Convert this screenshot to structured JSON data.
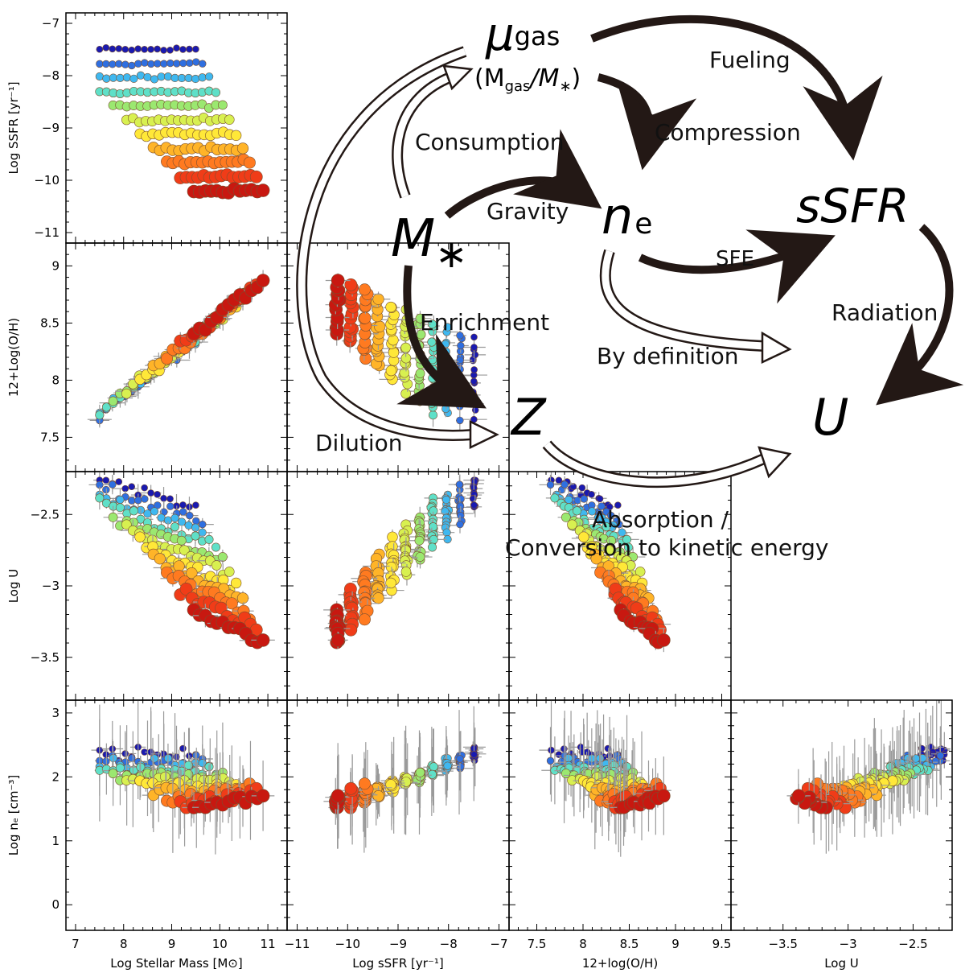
{
  "chart_data": {
    "type": "scatter",
    "panels": [
      {
        "id": "mass-ssfr",
        "xlabel": "",
        "ylabel": "Log SSFR [yr⁻¹]",
        "xlim": [
          6.8,
          11.4
        ],
        "ylim": [
          -11.2,
          -6.8
        ],
        "xticks": [],
        "yticks": [
          -11,
          -10,
          -9,
          -8,
          -7
        ]
      },
      {
        "id": "mass-oh",
        "xlabel": "",
        "ylabel": "12+Log(O/H)",
        "xlim": [
          6.8,
          11.4
        ],
        "ylim": [
          7.2,
          9.2
        ],
        "xticks": [],
        "yticks": [
          7.5,
          8.0,
          8.5,
          9.0
        ]
      },
      {
        "id": "ssfr-oh",
        "xlabel": "",
        "ylabel": "",
        "xlim": [
          -11.2,
          -6.8
        ],
        "ylim": [
          7.2,
          9.2
        ],
        "xticks": [],
        "yticks": []
      },
      {
        "id": "mass-u",
        "xlabel": "",
        "ylabel": "Log U",
        "xlim": [
          6.8,
          11.4
        ],
        "ylim": [
          -3.8,
          -2.2
        ],
        "xticks": [],
        "yticks": [
          -3.5,
          -3.0,
          -2.5
        ]
      },
      {
        "id": "ssfr-u",
        "xlabel": "",
        "ylabel": "",
        "xlim": [
          -11.2,
          -6.8
        ],
        "ylim": [
          -3.8,
          -2.2
        ],
        "xticks": [],
        "yticks": []
      },
      {
        "id": "oh-u",
        "xlabel": "",
        "ylabel": "",
        "xlim": [
          7.2,
          9.6
        ],
        "ylim": [
          -3.8,
          -2.2
        ],
        "xticks": [],
        "yticks": []
      },
      {
        "id": "mass-ne",
        "xlabel": "Log Stellar Mass [M⊙]",
        "ylabel": "Log nₑ [cm⁻³]",
        "xlim": [
          6.8,
          11.4
        ],
        "ylim": [
          -0.4,
          3.2
        ],
        "xticks": [
          7,
          8,
          9,
          10,
          11
        ],
        "yticks": [
          0,
          1,
          2,
          3
        ]
      },
      {
        "id": "ssfr-ne",
        "xlabel": "Log sSFR [yr⁻¹]",
        "ylabel": "",
        "xlim": [
          -11.2,
          -6.8
        ],
        "ylim": [
          -0.4,
          3.2
        ],
        "xticks": [
          -11,
          -10,
          -9,
          -8,
          -7
        ],
        "yticks": []
      },
      {
        "id": "oh-ne",
        "xlabel": "12+log(O/H)",
        "ylabel": "",
        "xlim": [
          7.2,
          9.6
        ],
        "ylim": [
          -0.4,
          3.2
        ],
        "xticks": [
          7.5,
          8.0,
          8.5,
          9.0,
          9.5
        ],
        "yticks": []
      },
      {
        "id": "u-ne",
        "xlabel": "Log U",
        "ylabel": "",
        "xlim": [
          -3.9,
          -2.2
        ],
        "ylim": [
          -0.4,
          3.2
        ],
        "xticks": [
          -3.5,
          -3.0,
          -2.5
        ],
        "yticks": []
      }
    ],
    "colormap": [
      "#1a1ab0",
      "#2f6fe0",
      "#3fb8f0",
      "#5fe0c8",
      "#9be870",
      "#d8f050",
      "#ffe838",
      "#ffb428",
      "#ff7a20",
      "#f03c18",
      "#c81810"
    ],
    "grid": false,
    "legend": "none"
  },
  "diagram": {
    "nodes": {
      "mu_main": "μ",
      "mu_sub": "gas",
      "ratio": "(M",
      "ratio_sub1": "gas",
      "ratio_mid": "/M",
      "ratio_sub2": "∗",
      "ratio_end": ")",
      "mstar": "M",
      "mstar_sub": "∗",
      "ne": "n",
      "ne_sub": "e",
      "ssfr": "sSFR",
      "z": "Z",
      "u": "U"
    },
    "labels": {
      "fueling": "Fueling",
      "compression": "Compression",
      "consumption": "Consumption",
      "gravity": "Gravity",
      "sfe": "SFE",
      "radiation": "Radiation",
      "enrichment": "Enrichment",
      "by_definition": "By definition",
      "dilution": "Dilution",
      "absorption_1": "Absorption /",
      "absorption_2": "Conversion to kinetic energy"
    }
  }
}
